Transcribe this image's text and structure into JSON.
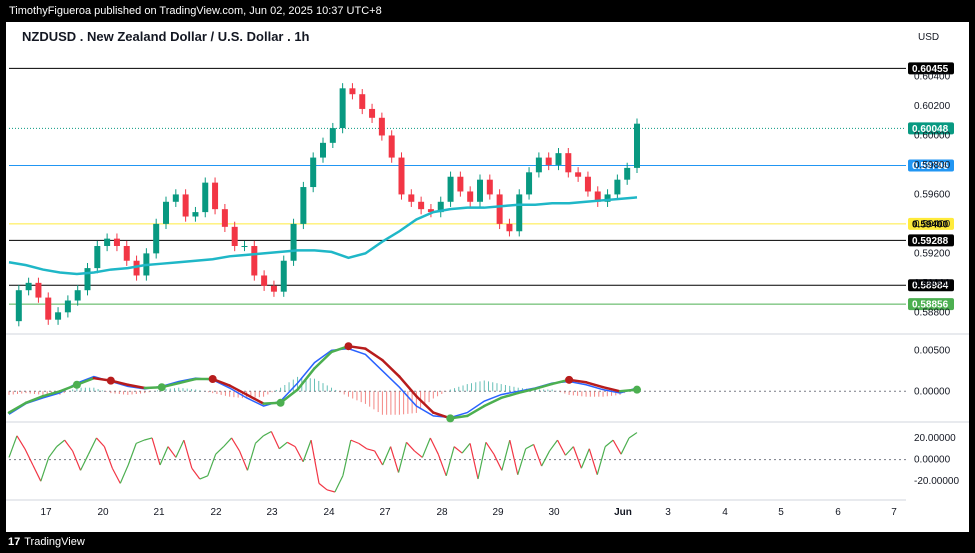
{
  "header": {
    "published_text": "TimothyFigueroa published on TradingView.com, Jun 02, 2025 10:37 UTC+8"
  },
  "footer": {
    "brand": "TradingView",
    "logo_glyph": "17"
  },
  "colors": {
    "up": "#089981",
    "down": "#f23645",
    "ma": "#1fb7c7",
    "macd_line": "#2962ff",
    "signal_up": "#4caf50",
    "signal_down": "#b71c1c",
    "rsi_up": "#4caf50",
    "rsi_down": "#f23645"
  },
  "chart_data": {
    "type": "line",
    "title": "NZDUSD . New Zealand Dollar / U.S. Dollar . 1h",
    "currency_label": "USD",
    "x_ticks": [
      "17",
      "20",
      "21",
      "22",
      "23",
      "24",
      "27",
      "28",
      "29",
      "30",
      "Jun",
      "3",
      "4",
      "5",
      "6",
      "7"
    ],
    "price_ticks": [
      "0.60400",
      "0.60200",
      "0.60000",
      "0.59800",
      "0.59600",
      "0.59400",
      "0.59200",
      "0.59000",
      "0.58800"
    ],
    "price_range": [
      0.5868,
      0.6058
    ],
    "horizontal_levels": [
      {
        "value": "0.60455",
        "color": "#000000",
        "text_color": "#ffffff",
        "line": "solid"
      },
      {
        "value": "0.60048",
        "color": "#089981",
        "text_color": "#ffffff",
        "line": "dotted"
      },
      {
        "value": "0.59796",
        "color": "#2196f3",
        "text_color": "#ffffff",
        "line": "solid"
      },
      {
        "value": "0.59400",
        "color": "#ffeb3b",
        "text_color": "#000000",
        "line": "solid"
      },
      {
        "value": "0.59288",
        "color": "#000000",
        "text_color": "#ffffff",
        "line": "solid"
      },
      {
        "value": "0.58984",
        "color": "#000000",
        "text_color": "#ffffff",
        "line": "solid"
      },
      {
        "value": "0.58856",
        "color": "#4caf50",
        "text_color": "#ffffff",
        "line": "solid"
      }
    ],
    "price_path": [
      0.5874,
      0.5895,
      0.59,
      0.589,
      0.5875,
      0.588,
      0.5888,
      0.5895,
      0.591,
      0.5925,
      0.593,
      0.5925,
      0.5915,
      0.5905,
      0.592,
      0.594,
      0.5955,
      0.596,
      0.5945,
      0.5948,
      0.5968,
      0.595,
      0.5938,
      0.5925,
      0.5925,
      0.5905,
      0.5898,
      0.5894,
      0.5915,
      0.594,
      0.5965,
      0.5985,
      0.5995,
      0.6005,
      0.6032,
      0.6028,
      0.6018,
      0.6012,
      0.6,
      0.5985,
      0.596,
      0.5955,
      0.595,
      0.5948,
      0.5955,
      0.5972,
      0.5962,
      0.5955,
      0.597,
      0.596,
      0.594,
      0.5935,
      0.596,
      0.5975,
      0.5985,
      0.598,
      0.5988,
      0.5975,
      0.5972,
      0.5962,
      0.5955,
      0.596,
      0.597,
      0.5978,
      0.6008
    ],
    "ma_path": [
      0.5914,
      0.5912,
      0.5909,
      0.5907,
      0.5906,
      0.5907,
      0.5909,
      0.591,
      0.5912,
      0.5913,
      0.5914,
      0.5915,
      0.5916,
      0.5918,
      0.5919,
      0.592,
      0.5921,
      0.5922,
      0.5922,
      0.5921,
      0.5917,
      0.592,
      0.5928,
      0.5935,
      0.5943,
      0.5948,
      0.595,
      0.5951,
      0.5951,
      0.5952,
      0.5953,
      0.5953,
      0.5954,
      0.5954,
      0.5955,
      0.5956,
      0.5957,
      0.5958
    ],
    "macd": {
      "ticks": [
        "0.00500",
        "0.00000"
      ],
      "range": [
        -0.0035,
        0.0065
      ],
      "line_path": [
        -0.0028,
        -0.0015,
        -0.0008,
        -0.0002,
        0.001,
        0.0018,
        0.0012,
        0.0006,
        0.0003,
        0.0006,
        0.0012,
        0.0016,
        0.0014,
        0.0004,
        -0.0008,
        -0.0018,
        -0.0012,
        0.001,
        0.0035,
        0.005,
        0.0052,
        0.0045,
        0.0025,
        0.0005,
        -0.0018,
        -0.003,
        -0.0032,
        -0.0026,
        -0.0012,
        -0.0004,
        0.0,
        0.0004,
        0.001,
        0.0012,
        0.0008,
        0.0002,
        -0.0002,
        0.0004
      ],
      "signal_path": [
        -0.0026,
        -0.0014,
        -0.0006,
        0.0,
        0.0008,
        0.0016,
        0.0013,
        0.0008,
        0.0004,
        0.0005,
        0.001,
        0.0015,
        0.0015,
        0.0007,
        -0.0004,
        -0.0015,
        -0.0014,
        0.0002,
        0.0028,
        0.0048,
        0.0055,
        0.0052,
        0.0038,
        0.0018,
        -0.0006,
        -0.0026,
        -0.0033,
        -0.003,
        -0.0018,
        -0.0008,
        -0.0002,
        0.0003,
        0.0009,
        0.0014,
        0.0011,
        0.0005,
        0.0,
        0.0002
      ]
    },
    "rsi": {
      "ticks": [
        "20.00000",
        "0.00000",
        "-20.00000"
      ],
      "range": [
        -30,
        32
      ],
      "path": [
        2,
        22,
        10,
        -5,
        -20,
        2,
        12,
        18,
        8,
        -10,
        5,
        20,
        12,
        -8,
        -22,
        -5,
        15,
        18,
        20,
        -5,
        12,
        2,
        18,
        -8,
        -18,
        -15,
        5,
        12,
        20,
        8,
        -10,
        15,
        22,
        26,
        10,
        16,
        12,
        -2,
        18,
        -22,
        -28,
        -30,
        -15,
        18,
        15,
        10,
        8,
        -5,
        12,
        -12,
        16,
        8,
        2,
        20,
        5,
        -15,
        12,
        6,
        15,
        -18,
        16,
        5,
        -10,
        18,
        -14,
        10,
        14,
        -6,
        8,
        18,
        4,
        12,
        -8,
        10,
        -14,
        12,
        18,
        5,
        20,
        25
      ]
    }
  }
}
